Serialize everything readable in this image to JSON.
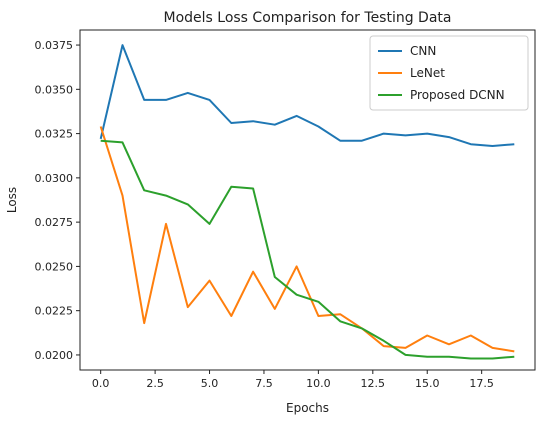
{
  "chart_data": {
    "type": "line",
    "title": "Models Loss Comparison for Testing Data",
    "xlabel": "Epochs",
    "ylabel": "Loss",
    "xlim": [
      -0.95,
      19.95
    ],
    "ylim": [
      0.01915,
      0.03835
    ],
    "xticks": [
      0,
      2.5,
      5,
      7.5,
      10,
      12.5,
      15,
      17.5
    ],
    "xtick_labels": [
      "0.0",
      "2.5",
      "5.0",
      "7.5",
      "10.0",
      "12.5",
      "15.0",
      "17.5"
    ],
    "yticks": [
      0.02,
      0.0225,
      0.025,
      0.0275,
      0.03,
      0.0325,
      0.035,
      0.0375
    ],
    "ytick_labels": [
      "0.0200",
      "0.0225",
      "0.0250",
      "0.0275",
      "0.0300",
      "0.0325",
      "0.0350",
      "0.0375"
    ],
    "grid": false,
    "legend": "top-right",
    "x": [
      0,
      1,
      2,
      3,
      4,
      5,
      6,
      7,
      8,
      9,
      10,
      11,
      12,
      13,
      14,
      15,
      16,
      17,
      18,
      19
    ],
    "series": [
      {
        "name": "CNN",
        "color": "#1f77b4",
        "values": [
          0.0322,
          0.0375,
          0.0344,
          0.0344,
          0.0348,
          0.0344,
          0.0331,
          0.0332,
          0.033,
          0.0335,
          0.0329,
          0.0321,
          0.0321,
          0.0325,
          0.0324,
          0.0325,
          0.0323,
          0.0319,
          0.0318,
          0.0319
        ]
      },
      {
        "name": "LeNet",
        "color": "#ff7f0e",
        "values": [
          0.0329,
          0.029,
          0.0218,
          0.0274,
          0.0227,
          0.0242,
          0.0222,
          0.0247,
          0.0226,
          0.025,
          0.0222,
          0.0223,
          0.0215,
          0.0205,
          0.0204,
          0.0211,
          0.0206,
          0.0211,
          0.0204,
          0.0202
        ]
      },
      {
        "name": "Proposed DCNN",
        "color": "#2ca02c",
        "values": [
          0.0321,
          0.032,
          0.0293,
          0.029,
          0.0285,
          0.0274,
          0.0295,
          0.0294,
          0.0244,
          0.0234,
          0.023,
          0.0219,
          0.0215,
          0.0208,
          0.02,
          0.0199,
          0.0199,
          0.0198,
          0.0198,
          0.0199
        ]
      }
    ]
  }
}
